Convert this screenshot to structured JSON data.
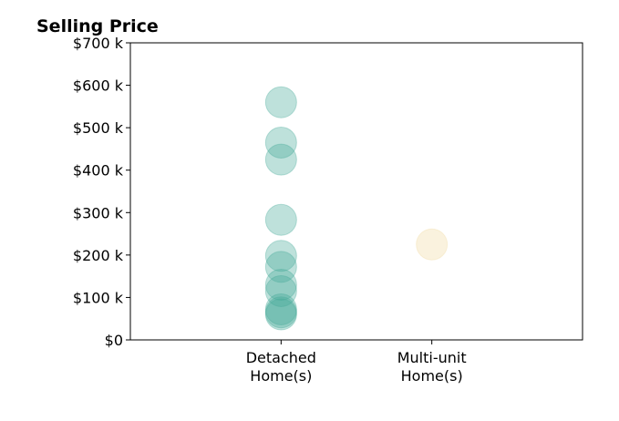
{
  "chart_data": {
    "type": "scatter",
    "title": "Selling Price",
    "xlabel": "",
    "ylabel": "",
    "categories": [
      "Detached\nHome(s)",
      "Multi-unit\nHome(s)"
    ],
    "xlim": [
      -1,
      2
    ],
    "ylim": [
      0,
      700000
    ],
    "yticks": [
      0,
      100000,
      200000,
      300000,
      400000,
      500000,
      600000,
      700000
    ],
    "ytick_labels": [
      "$0",
      "$100 k",
      "$200 k",
      "$300 k",
      "$400 k",
      "$500 k",
      "$600 k",
      "$700 k"
    ],
    "grid": false,
    "series": [
      {
        "category_index": 0,
        "color": "#44aa99",
        "values": [
          560000,
          465000,
          425000,
          283000,
          198000,
          172000,
          130000,
          115000,
          72000,
          65000,
          60000
        ]
      },
      {
        "category_index": 1,
        "color": "#f0d9a0",
        "values": [
          225000
        ]
      }
    ]
  }
}
